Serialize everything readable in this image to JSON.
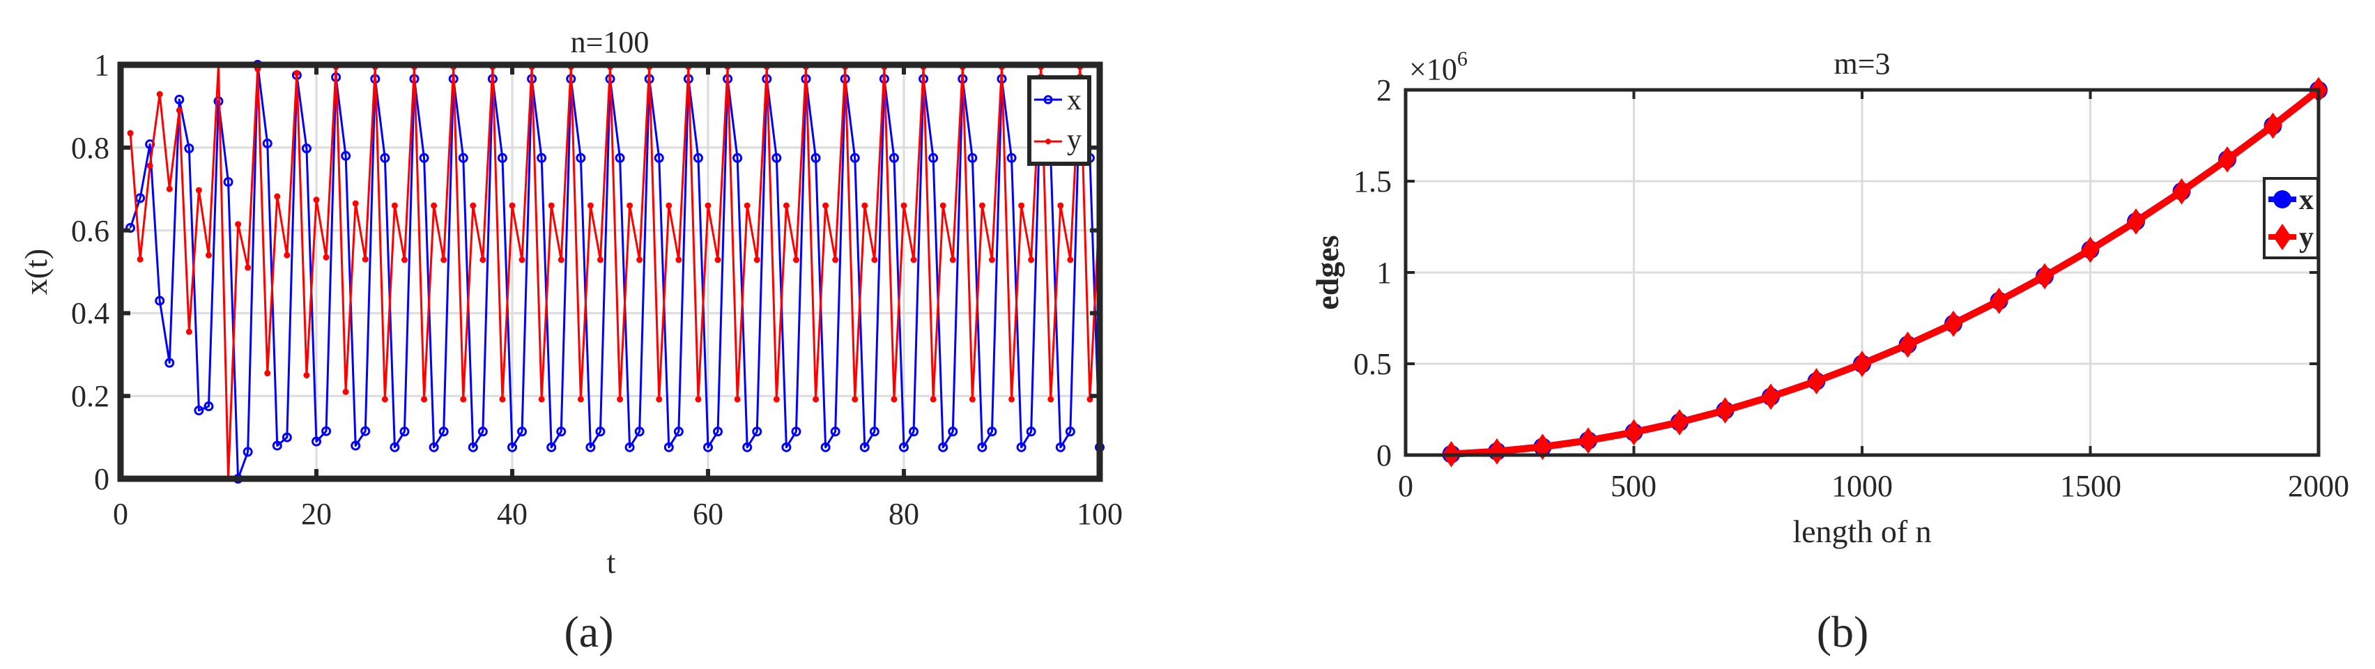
{
  "figure": {
    "panel_a_label": "(a)",
    "panel_b_label": "(b)"
  },
  "chart_data": [
    {
      "type": "line",
      "title": "n=100",
      "xlabel": "t",
      "ylabel": "x(t)",
      "xlim": [
        0,
        100
      ],
      "ylim": [
        0,
        1
      ],
      "xticks": [
        "0",
        "20",
        "40",
        "60",
        "80",
        "100"
      ],
      "yticks": [
        "0",
        "0.2",
        "0.4",
        "0.6",
        "0.8",
        "1"
      ],
      "grid": true,
      "legend_position": "upper right (inside)",
      "legend": [
        "x",
        "y"
      ],
      "x": [
        1,
        2,
        3,
        4,
        5,
        6,
        7,
        8,
        9,
        10,
        11,
        12,
        13,
        14,
        15,
        16,
        17,
        18,
        19,
        20,
        21,
        22,
        23,
        24,
        25,
        26,
        27,
        28,
        29,
        30,
        31,
        32,
        33,
        34,
        35,
        36,
        37,
        38,
        39,
        40,
        41,
        42,
        43,
        44,
        45,
        46,
        47,
        48,
        49,
        50,
        51,
        52,
        53,
        54,
        55,
        56,
        57,
        58,
        59,
        60,
        61,
        62,
        63,
        64,
        65,
        66,
        67,
        68,
        69,
        70,
        71,
        72,
        73,
        74,
        75,
        76,
        77,
        78,
        79,
        80,
        81,
        82,
        83,
        84,
        85,
        86,
        87,
        88,
        89,
        90,
        91,
        92,
        93,
        94,
        95,
        96,
        97,
        98,
        99,
        100
      ],
      "series": [
        {
          "name": "x",
          "color": "#0000ff",
          "marker": "circle",
          "values": [
            0.606,
            0.678,
            0.808,
            0.43,
            0.28,
            0.916,
            0.798,
            0.165,
            0.175,
            0.912,
            0.717,
            0.0,
            0.065,
            1.0,
            0.81,
            0.08,
            0.1,
            0.975,
            0.798,
            0.09,
            0.115,
            0.97,
            0.78,
            0.08,
            0.115,
            0.966,
            0.775,
            0.076,
            0.114,
            0.966,
            0.775,
            0.076,
            0.114,
            0.966,
            0.775,
            0.076,
            0.114,
            0.966,
            0.775,
            0.076,
            0.114,
            0.966,
            0.775,
            0.076,
            0.114,
            0.966,
            0.775,
            0.076,
            0.114,
            0.966,
            0.775,
            0.076,
            0.114,
            0.966,
            0.775,
            0.076,
            0.114,
            0.966,
            0.775,
            0.076,
            0.114,
            0.966,
            0.775,
            0.076,
            0.114,
            0.966,
            0.775,
            0.076,
            0.114,
            0.966,
            0.775,
            0.076,
            0.114,
            0.966,
            0.775,
            0.076,
            0.114,
            0.966,
            0.775,
            0.076,
            0.114,
            0.966,
            0.775,
            0.076,
            0.114,
            0.966,
            0.775,
            0.076,
            0.114,
            0.966,
            0.775,
            0.076,
            0.114,
            0.966,
            0.775,
            0.076,
            0.114,
            0.966,
            0.775,
            0.076
          ]
        },
        {
          "name": "y",
          "color": "#ff0000",
          "marker": "point",
          "values": [
            0.835,
            0.53,
            0.756,
            0.929,
            0.7,
            0.89,
            0.355,
            0.697,
            0.54,
            1.0,
            0.0,
            0.615,
            0.51,
            0.99,
            0.255,
            0.682,
            0.54,
            0.98,
            0.25,
            0.674,
            0.535,
            0.995,
            0.21,
            0.665,
            0.53,
            0.995,
            0.192,
            0.66,
            0.529,
            0.995,
            0.192,
            0.66,
            0.529,
            0.995,
            0.192,
            0.66,
            0.529,
            0.995,
            0.192,
            0.66,
            0.529,
            0.995,
            0.192,
            0.66,
            0.529,
            0.995,
            0.192,
            0.66,
            0.529,
            0.995,
            0.192,
            0.66,
            0.529,
            0.995,
            0.192,
            0.66,
            0.529,
            0.995,
            0.192,
            0.66,
            0.529,
            0.995,
            0.192,
            0.66,
            0.529,
            0.995,
            0.192,
            0.66,
            0.529,
            0.995,
            0.192,
            0.66,
            0.529,
            0.995,
            0.192,
            0.66,
            0.529,
            0.995,
            0.192,
            0.66,
            0.529,
            0.995,
            0.192,
            0.66,
            0.529,
            0.995,
            0.192,
            0.66,
            0.529,
            0.995,
            0.192,
            0.66,
            0.529,
            0.995,
            0.192,
            0.66,
            0.529,
            0.995,
            0.192,
            0.66
          ]
        }
      ]
    },
    {
      "type": "line",
      "title": "m=3",
      "xlabel": "length of n",
      "ylabel": "edges",
      "y_multiplier": "×10^6",
      "y_multiplier_base": "×10",
      "y_multiplier_exp": "6",
      "xlim": [
        0,
        2000
      ],
      "ylim": [
        0,
        2000000
      ],
      "xticks": [
        "0",
        "500",
        "1000",
        "1500",
        "2000"
      ],
      "yticks": [
        "0",
        "0.5",
        "1",
        "1.5",
        "2"
      ],
      "grid": true,
      "legend_position": "right (inside)",
      "legend": [
        "x",
        "y"
      ],
      "x": [
        100,
        200,
        300,
        400,
        500,
        600,
        700,
        800,
        900,
        1000,
        1100,
        1200,
        1300,
        1400,
        1500,
        1600,
        1700,
        1800,
        1900,
        2000
      ],
      "series": [
        {
          "name": "x",
          "color": "#0000ff",
          "marker": "circle",
          "values": [
            4950,
            19900,
            44850,
            79800,
            124750,
            179700,
            244650,
            319600,
            404550,
            499500,
            604450,
            719400,
            844350,
            979300,
            1124250,
            1279200,
            1444150,
            1619100,
            1804050,
            1999000
          ]
        },
        {
          "name": "y",
          "color": "#ff0000",
          "marker": "diamond",
          "values": [
            4950,
            19900,
            44850,
            79800,
            124750,
            179700,
            244650,
            319600,
            404550,
            499500,
            604450,
            719400,
            844350,
            979300,
            1124250,
            1279200,
            1444150,
            1619100,
            1804050,
            1999000
          ]
        }
      ]
    }
  ]
}
